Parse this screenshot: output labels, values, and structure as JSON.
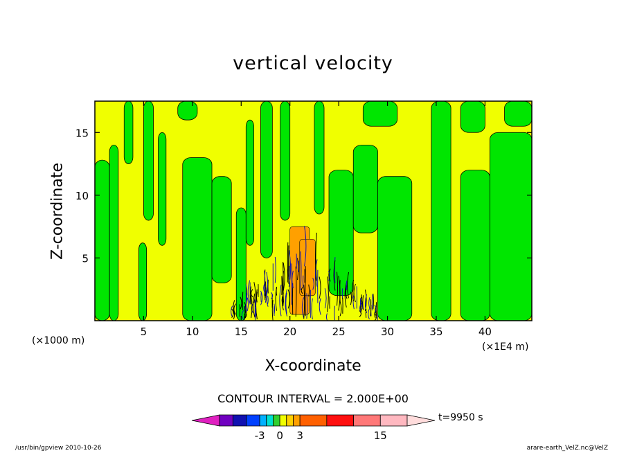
{
  "chart_data": {
    "type": "heatmap",
    "title": "vertical velocity",
    "xlabel": "X-coordinate",
    "ylabel": "Z-coordinate",
    "x_unit_left": "(×1000 m)",
    "x_unit_right": "(×1E4 m)",
    "xlim": [
      0,
      44.8
    ],
    "ylim": [
      0,
      17.5
    ],
    "x_ticks": [
      5,
      10,
      15,
      20,
      25,
      30,
      35,
      40
    ],
    "y_ticks": [
      5,
      10,
      15
    ],
    "contour_interval": "CONTOUR INTERVAL = 2.000E+00",
    "time_label": "t=9950 s",
    "colorbar_labels": [
      {
        "value": -3,
        "text": "-3"
      },
      {
        "value": 0,
        "text": "0"
      },
      {
        "value": 3,
        "text": "3"
      },
      {
        "value": 15,
        "text": "15"
      }
    ],
    "colorbar_colors": [
      "#e020c0",
      "#7000c0",
      "#1010b0",
      "#0040ff",
      "#00b0ff",
      "#00e0d0",
      "#30d030",
      "#f0ff00",
      "#ffd000",
      "#ffa000",
      "#ff6000",
      "#ff1010",
      "#ff7878",
      "#ffb8c0",
      "#ffdcdc"
    ],
    "field_colors": {
      "negative": "#00e600",
      "positive": "#f0ff00",
      "strong_up": "#ffa000",
      "strong_down": "#1010b0"
    },
    "green_regions": [
      {
        "x": [
          0.0,
          1.5
        ],
        "z": [
          0.0,
          12.8
        ]
      },
      {
        "x": [
          1.5,
          2.4
        ],
        "z": [
          0.0,
          14.0
        ]
      },
      {
        "x": [
          3.0,
          3.9
        ],
        "z": [
          12.5,
          17.5
        ]
      },
      {
        "x": [
          4.5,
          5.3
        ],
        "z": [
          0.0,
          6.2
        ]
      },
      {
        "x": [
          5.0,
          6.0
        ],
        "z": [
          8.0,
          17.5
        ]
      },
      {
        "x": [
          6.5,
          7.3
        ],
        "z": [
          6.0,
          15.0
        ]
      },
      {
        "x": [
          9.0,
          12.0
        ],
        "z": [
          0.0,
          13.0
        ]
      },
      {
        "x": [
          12.0,
          14.0
        ],
        "z": [
          3.0,
          11.5
        ]
      },
      {
        "x": [
          8.5,
          10.5
        ],
        "z": [
          16.0,
          17.5
        ]
      },
      {
        "x": [
          14.5,
          15.5
        ],
        "z": [
          0.0,
          9.0
        ]
      },
      {
        "x": [
          15.5,
          16.3
        ],
        "z": [
          6.0,
          16.0
        ]
      },
      {
        "x": [
          17.0,
          18.2
        ],
        "z": [
          5.0,
          17.5
        ]
      },
      {
        "x": [
          19.0,
          20.0
        ],
        "z": [
          8.0,
          17.5
        ]
      },
      {
        "x": [
          22.5,
          23.5
        ],
        "z": [
          8.5,
          17.5
        ]
      },
      {
        "x": [
          24.0,
          26.5
        ],
        "z": [
          2.0,
          12.0
        ]
      },
      {
        "x": [
          26.5,
          29.0
        ],
        "z": [
          7.0,
          14.0
        ]
      },
      {
        "x": [
          29.0,
          32.5
        ],
        "z": [
          0.0,
          11.5
        ]
      },
      {
        "x": [
          27.5,
          31.0
        ],
        "z": [
          15.5,
          17.5
        ]
      },
      {
        "x": [
          34.5,
          36.5
        ],
        "z": [
          0.0,
          17.5
        ]
      },
      {
        "x": [
          37.5,
          40.5
        ],
        "z": [
          0.0,
          12.0
        ]
      },
      {
        "x": [
          40.5,
          44.8
        ],
        "z": [
          0.0,
          15.0
        ]
      },
      {
        "x": [
          37.5,
          40.0
        ],
        "z": [
          15.0,
          17.5
        ]
      },
      {
        "x": [
          42.0,
          44.8
        ],
        "z": [
          15.5,
          17.5
        ]
      }
    ],
    "orange_regions": [
      {
        "x": [
          20.0,
          22.0
        ],
        "z": [
          0.5,
          7.5
        ]
      },
      {
        "x": [
          21.0,
          22.6
        ],
        "z": [
          2.0,
          6.5
        ]
      }
    ]
  },
  "footer": {
    "left": "/usr/bin/gpview   2010-10-26",
    "right": "arare-earth_VelZ.nc@VelZ"
  }
}
